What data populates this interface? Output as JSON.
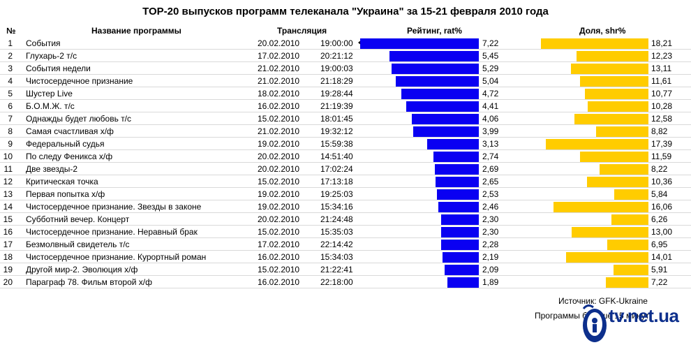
{
  "title": "TOP-20 выпусков программ телеканала \"Украина\" за 15-21 февраля 2010 года",
  "headers": {
    "rank": "№",
    "name": "Название программы",
    "broadcast": "Трансляция",
    "rating": "Рейтинг, rat%",
    "share": "Доля, shr%"
  },
  "colors": {
    "rating": "#0a00f2",
    "share": "#ffcc00"
  },
  "chart_data": {
    "type": "bar",
    "title": "TOP-20 выпусков программ телеканала \"Украина\" за 15-21 февраля 2010 года",
    "categories": [
      "События",
      "Глухарь-2 т/с",
      "События недели",
      "Чистосердечное признание",
      "Шустер Live",
      "Б.О.М.Ж. т/с",
      "Однажды будет любовь т/с",
      "Самая счастливая х/ф",
      "Федеральный судья",
      "По следу Феникса х/ф",
      "Две звезды-2",
      "Критическая точка",
      "Первая попытка х/ф",
      "Чистосердечное признание. Звезды в законе",
      "Субботний вечер. Концерт",
      "Чистосердечное признание. Неравный брак",
      "Безмолвный свидетель т/с",
      "Чистосердечное признание. Курортный роман",
      "Другой мир-2. Эволюция х/ф",
      "Параграф 78. Фильм второй х/ф"
    ],
    "series": [
      {
        "name": "Рейтинг, rat%",
        "values": [
          7.22,
          5.45,
          5.29,
          5.04,
          4.72,
          4.41,
          4.06,
          3.99,
          3.13,
          2.74,
          2.69,
          2.65,
          2.53,
          2.46,
          2.3,
          2.3,
          2.28,
          2.19,
          2.09,
          1.89
        ]
      },
      {
        "name": "Доля, shr%",
        "values": [
          18.21,
          12.23,
          13.11,
          11.61,
          10.77,
          10.28,
          12.58,
          8.82,
          17.39,
          11.59,
          8.22,
          10.36,
          5.84,
          16.06,
          6.26,
          13.0,
          6.95,
          14.01,
          5.91,
          7.22
        ]
      }
    ],
    "xlabel": "",
    "ylabel": "",
    "legend": "none",
    "grid": false
  },
  "rows": [
    {
      "rank": "1",
      "name": "События",
      "date": "20.02.2010",
      "time": "19:00:00",
      "rating_label": "7,22",
      "share_label": "18,21"
    },
    {
      "rank": "2",
      "name": "Глухарь-2 т/с",
      "date": "17.02.2010",
      "time": "20:21:12",
      "rating_label": "5,45",
      "share_label": "12,23"
    },
    {
      "rank": "3",
      "name": "События недели",
      "date": "21.02.2010",
      "time": "19:00:03",
      "rating_label": "5,29",
      "share_label": "13,11"
    },
    {
      "rank": "4",
      "name": "Чистосердечное признание",
      "date": "21.02.2010",
      "time": "21:18:29",
      "rating_label": "5,04",
      "share_label": "11,61"
    },
    {
      "rank": "5",
      "name": "Шустер Live",
      "date": "18.02.2010",
      "time": "19:28:44",
      "rating_label": "4,72",
      "share_label": "10,77"
    },
    {
      "rank": "6",
      "name": "Б.О.М.Ж. т/с",
      "date": "16.02.2010",
      "time": "21:19:39",
      "rating_label": "4,41",
      "share_label": "10,28"
    },
    {
      "rank": "7",
      "name": "Однажды будет любовь т/с",
      "date": "15.02.2010",
      "time": "18:01:45",
      "rating_label": "4,06",
      "share_label": "12,58"
    },
    {
      "rank": "8",
      "name": "Самая счастливая х/ф",
      "date": "21.02.2010",
      "time": "19:32:12",
      "rating_label": "3,99",
      "share_label": "8,82"
    },
    {
      "rank": "9",
      "name": "Федеральный судья",
      "date": "19.02.2010",
      "time": "15:59:38",
      "rating_label": "3,13",
      "share_label": "17,39"
    },
    {
      "rank": "10",
      "name": "По следу Феникса х/ф",
      "date": "20.02.2010",
      "time": "14:51:40",
      "rating_label": "2,74",
      "share_label": "11,59"
    },
    {
      "rank": "11",
      "name": "Две звезды-2",
      "date": "20.02.2010",
      "time": "17:02:24",
      "rating_label": "2,69",
      "share_label": "8,22"
    },
    {
      "rank": "12",
      "name": "Критическая точка",
      "date": "15.02.2010",
      "time": "17:13:18",
      "rating_label": "2,65",
      "share_label": "10,36"
    },
    {
      "rank": "13",
      "name": "Первая попытка х/ф",
      "date": "19.02.2010",
      "time": "19:25:03",
      "rating_label": "2,53",
      "share_label": "5,84"
    },
    {
      "rank": "14",
      "name": "Чистосердечное признание. Звезды в законе",
      "date": "19.02.2010",
      "time": "15:34:16",
      "rating_label": "2,46",
      "share_label": "16,06"
    },
    {
      "rank": "15",
      "name": "Субботний вечер. Концерт",
      "date": "20.02.2010",
      "time": "21:24:48",
      "rating_label": "2,30",
      "share_label": "6,26"
    },
    {
      "rank": "16",
      "name": "Чистосердечное признание. Неравный брак",
      "date": "15.02.2010",
      "time": "15:35:03",
      "rating_label": "2,30",
      "share_label": "13,00"
    },
    {
      "rank": "17",
      "name": "Безмолвный свидетель т/с",
      "date": "17.02.2010",
      "time": "22:14:42",
      "rating_label": "2,28",
      "share_label": "6,95"
    },
    {
      "rank": "18",
      "name": "Чистосердечное признание. Курортный роман",
      "date": "16.02.2010",
      "time": "15:34:03",
      "rating_label": "2,19",
      "share_label": "14,01"
    },
    {
      "rank": "19",
      "name": "Другой мир-2. Эволюция х/ф",
      "date": "15.02.2010",
      "time": "21:22:41",
      "rating_label": "2,09",
      "share_label": "5,91"
    },
    {
      "rank": "20",
      "name": "Параграф 78. Фильм второй х/ф",
      "date": "16.02.2010",
      "time": "22:18:00",
      "rating_label": "1,89",
      "share_label": "7,22"
    }
  ],
  "footer": {
    "source": "Источник: GFK-Ukraine",
    "note": "Программы больше 15 минут",
    "logo_text": "tv.net.ua"
  }
}
